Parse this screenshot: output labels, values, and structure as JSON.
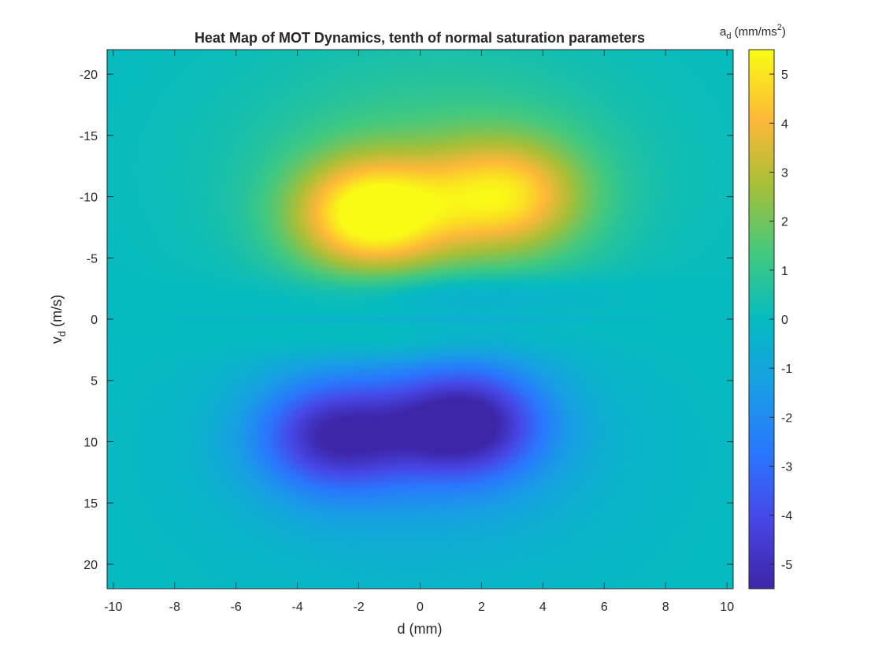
{
  "chart_data": {
    "type": "heatmap",
    "title": "Heat Map of MOT Dynamics, tenth of normal saturation parameters",
    "xlabel": {
      "base": "d (mm)"
    },
    "ylabel": {
      "base": "v",
      "subscript": "d",
      "suffix": " (m/s)"
    },
    "xlim": [
      -10.2,
      10.2
    ],
    "ylim": [
      -22,
      22
    ],
    "y_reversed": true,
    "x_ticks": [
      -10,
      -8,
      -6,
      -4,
      -2,
      0,
      2,
      4,
      6,
      8,
      10
    ],
    "y_ticks": [
      -20,
      -15,
      -10,
      -5,
      0,
      5,
      10,
      15,
      20
    ],
    "colorbar": {
      "label": {
        "base": "a",
        "subscript": "d",
        "suffix_before_sup": " (mm/ms",
        "superscript": "2",
        "suffix_after_sup": ")"
      },
      "range": [
        -5.5,
        5.5
      ],
      "ticks": [
        -5,
        -4,
        -3,
        -2,
        -1,
        0,
        1,
        2,
        3,
        4,
        5
      ],
      "colormap": "parula"
    },
    "features": [
      {
        "kind": "max",
        "d": -1.6,
        "v": -8.5,
        "value": 5.4
      },
      {
        "kind": "max",
        "d": 2.8,
        "v": -10,
        "value": 4.1
      },
      {
        "kind": "min",
        "d": -2.8,
        "v": 9.5,
        "value": -4.6
      },
      {
        "kind": "min",
        "d": 1.5,
        "v": 8.5,
        "value": -5.3
      }
    ],
    "grid": false
  },
  "colors": {
    "axis": "#262626",
    "background": "#ffffff"
  }
}
